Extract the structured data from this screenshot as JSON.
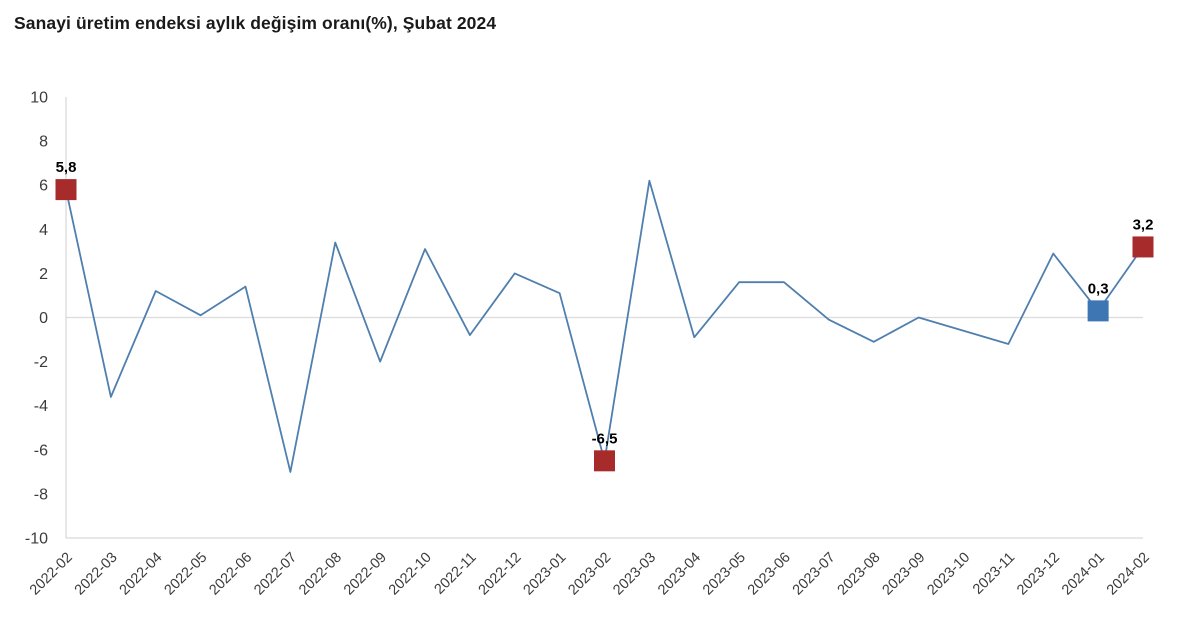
{
  "page": {
    "title": "Sanayi üretim endeksi aylık değişim oranı(%), Şubat 2024"
  },
  "chart_data": {
    "type": "line",
    "title": "Sanayi üretim endeksi aylık değişim oranı(%), Şubat 2024",
    "xlabel": "",
    "ylabel": "",
    "categories": [
      "2022-02",
      "2022-03",
      "2022-04",
      "2022-05",
      "2022-06",
      "2022-07",
      "2022-08",
      "2022-09",
      "2022-10",
      "2022-11",
      "2022-12",
      "2023-01",
      "2023-02",
      "2023-03",
      "2023-04",
      "2023-05",
      "2023-06",
      "2023-07",
      "2023-08",
      "2023-09",
      "2023-10",
      "2023-11",
      "2023-12",
      "2024-01",
      "2024-02"
    ],
    "values": [
      5.8,
      -3.6,
      1.2,
      0.1,
      1.4,
      -7.0,
      3.4,
      -2.0,
      3.1,
      -0.8,
      2.0,
      1.1,
      -6.5,
      6.2,
      -0.9,
      1.6,
      1.6,
      -0.1,
      -1.1,
      0.0,
      -0.6,
      -1.2,
      2.9,
      0.3,
      3.2
    ],
    "ylim": [
      -10,
      10
    ],
    "ytick_step": 2,
    "yticks": [
      10,
      8,
      6,
      4,
      2,
      0,
      -2,
      -4,
      -6,
      -8,
      -10
    ],
    "grid": "zero-line-only",
    "legend": "none",
    "xtick_rotation_deg": 45,
    "highlighted_points": [
      {
        "index": 0,
        "category": "2022-02",
        "value": 5.8,
        "label": "5,8",
        "marker_color": "#a72b2a"
      },
      {
        "index": 12,
        "category": "2023-02",
        "value": -6.5,
        "label": "-6,5",
        "marker_color": "#a72b2a"
      },
      {
        "index": 23,
        "category": "2024-01",
        "value": 0.3,
        "label": "0,3",
        "marker_color": "#3e76b4"
      },
      {
        "index": 24,
        "category": "2024-02",
        "value": 3.2,
        "label": "3,2",
        "marker_color": "#a72b2a"
      }
    ],
    "colors": {
      "line": "#4f7fae",
      "marker_red": "#a72b2a",
      "marker_blue": "#3e76b4",
      "axis": "#cfcfcf",
      "zero_line": "#dcdcdc",
      "tick_text": "#3c3c3c",
      "title_text": "#1a1a1a",
      "background": "#ffffff"
    }
  }
}
